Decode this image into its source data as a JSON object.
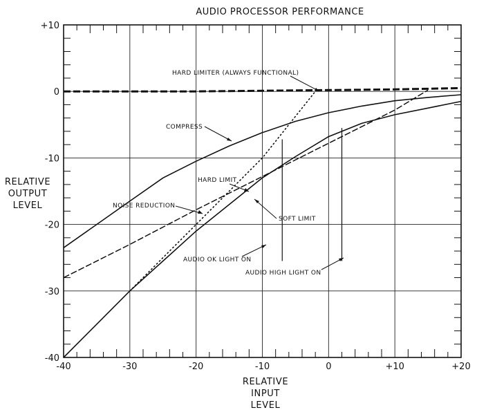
{
  "chart_data": {
    "type": "line",
    "title": "AUDIO PROCESSOR PERFORMANCE",
    "xlabel": [
      "RELATIVE",
      "INPUT",
      "LEVEL"
    ],
    "ylabel": [
      "RELATIVE",
      "OUTPUT",
      "LEVEL"
    ],
    "xlim": [
      -40,
      20
    ],
    "ylim": [
      -40,
      10
    ],
    "x_ticks": [
      {
        "value": -40,
        "label": "-40"
      },
      {
        "value": -30,
        "label": "-30"
      },
      {
        "value": -20,
        "label": "-20"
      },
      {
        "value": -10,
        "label": "-10"
      },
      {
        "value": 0,
        "label": "0"
      },
      {
        "value": 10,
        "label": "+10"
      },
      {
        "value": 20,
        "label": "+20"
      }
    ],
    "y_ticks": [
      {
        "value": 10,
        "label": "+10"
      },
      {
        "value": 0,
        "label": "0"
      },
      {
        "value": -10,
        "label": "-10"
      },
      {
        "value": -20,
        "label": "-20"
      },
      {
        "value": -30,
        "label": "-30"
      },
      {
        "value": -40,
        "label": "-40"
      }
    ],
    "grid": true,
    "series": [
      {
        "name": "HARD LIMITER (ALWAYS FUNCTIONAL)",
        "style": "thick-dashed",
        "x": [
          -40,
          -20,
          0,
          10,
          20
        ],
        "y": [
          0,
          0,
          0.2,
          0.3,
          0.5
        ]
      },
      {
        "name": "COMPRESS",
        "style": "solid",
        "x": [
          -40,
          -35,
          -30,
          -25,
          -20,
          -15,
          -10,
          -5,
          0,
          5,
          10,
          15,
          20
        ],
        "y": [
          -23.5,
          -20,
          -16.5,
          -13,
          -10.5,
          -8.2,
          -6.2,
          -4.5,
          -3.2,
          -2.2,
          -1.4,
          -0.9,
          -0.5
        ]
      },
      {
        "name": "NOISE REDUCTION",
        "style": "dashed",
        "x": [
          -40,
          -30,
          -20,
          -10,
          0,
          10,
          15
        ],
        "y": [
          -28,
          -23,
          -17.8,
          -12.8,
          -7.8,
          -2.8,
          0.2
        ]
      },
      {
        "name": "HARD LIMIT",
        "style": "dotted",
        "x": [
          -30,
          -20,
          -10,
          -2
        ],
        "y": [
          -30,
          -20,
          -10,
          0
        ]
      },
      {
        "name": "SOFT LIMIT",
        "style": "solid",
        "x": [
          -40,
          -35,
          -30,
          -25,
          -20,
          -15,
          -10,
          -5,
          0,
          5,
          10,
          15,
          20
        ],
        "y": [
          -40,
          -35,
          -30,
          -25.5,
          -21,
          -17,
          -13,
          -9.8,
          -6.8,
          -4.8,
          -3.5,
          -2.5,
          -1.5
        ]
      }
    ],
    "markers": [
      {
        "label": "AUDIO OK LIGHT ON",
        "x": -7,
        "y_from": -7.2,
        "y_to": -25.5
      },
      {
        "label": "AUDIO HIGH LIGHT ON",
        "x": 2,
        "y_from": -5.5,
        "y_to": -25.5
      }
    ],
    "annotations": {
      "hard_limiter": "HARD LIMITER (ALWAYS FUNCTIONAL)",
      "compress": "COMPRESS",
      "hard_limit": "HARD LIMIT",
      "noise_reduction": "NOISE REDUCTION",
      "soft_limit": "SOFT LIMIT",
      "audio_ok": "AUDIO OK LIGHT ON",
      "audio_high": "AUDIO HIGH LIGHT ON"
    }
  }
}
